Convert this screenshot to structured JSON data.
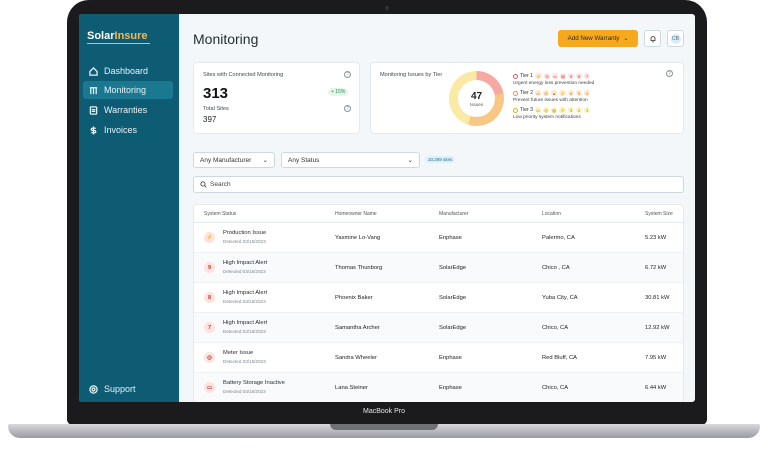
{
  "device_label": "MacBook Pro",
  "sidebar": {
    "logo_a": "Solar",
    "logo_b": "Insure",
    "items": [
      {
        "label": "Dashboard"
      },
      {
        "label": "Monitoring"
      },
      {
        "label": "Warranties"
      },
      {
        "label": "Invoices"
      }
    ],
    "support": "Support"
  },
  "header": {
    "title": "Monitoring",
    "add_button": "Add New Warranty",
    "avatar": "CB"
  },
  "card1": {
    "label": "Sites with Connected Monitoring",
    "value": "313",
    "change": "+ 15%",
    "total_label": "Total Sites",
    "total_value": "397"
  },
  "card2": {
    "label": "Monitoring Issues by Tier",
    "total": "47",
    "total_label": "Issues",
    "tiers": [
      {
        "name": "Tier 1",
        "counts": [
          "9",
          "8",
          "7"
        ],
        "desc": "Urgent energy loss prevention needed"
      },
      {
        "name": "Tier 2",
        "counts": [
          "6",
          "5",
          "4"
        ],
        "desc": "Prevent future issues with attention"
      },
      {
        "name": "Tier 3",
        "counts": [
          "3",
          "2",
          "1"
        ],
        "desc": "Low priority system notifications"
      }
    ]
  },
  "filters": {
    "manufacturer": "Any Manufacturer",
    "status": "Any Status",
    "sites_count": "10,289 sites",
    "search_placeholder": "Search"
  },
  "table": {
    "headers": [
      "System Status",
      "Homeowner Name",
      "Manufacturer",
      "Location",
      "System Size"
    ],
    "rows": [
      {
        "icon": "⚡",
        "status": "Production Issue",
        "date": "Detected 03/15/2023",
        "name": "Yasmine Lo-Vang",
        "manufacturer": "Enphase",
        "location": "Palermo, CA",
        "size": "5.23 kW"
      },
      {
        "icon": "9",
        "status": "High Impact Alert",
        "date": "Detected 03/15/2023",
        "name": "Thomas Thunborg",
        "manufacturer": "SolarEdge",
        "location": "Chico , CA",
        "size": "6.72 kW"
      },
      {
        "icon": "8",
        "status": "High Impact Alert",
        "date": "Detected 03/15/2023",
        "name": "Phoenix Baker",
        "manufacturer": "SolarEdge",
        "location": "Yuba City, CA",
        "size": "30.81 kW"
      },
      {
        "icon": "7",
        "status": "High Impact Alert",
        "date": "Detected 03/15/2023",
        "name": "Samantha Archer",
        "manufacturer": "SolarEdge",
        "location": "Chico, CA",
        "size": "12.92 kW"
      },
      {
        "icon": "◎",
        "status": "Meter Issue",
        "date": "Detected 03/15/2023",
        "name": "Sandra Wheeler",
        "manufacturer": "Enphase",
        "location": "Red Bluff, CA",
        "size": "7.95 kW"
      },
      {
        "icon": "▭",
        "status": "Battery Storage Inactive",
        "date": "Detected 03/15/2023",
        "name": "Lana Steiner",
        "manufacturer": "Enphase",
        "location": "Chico, CA",
        "size": "6.44 kW"
      }
    ]
  }
}
